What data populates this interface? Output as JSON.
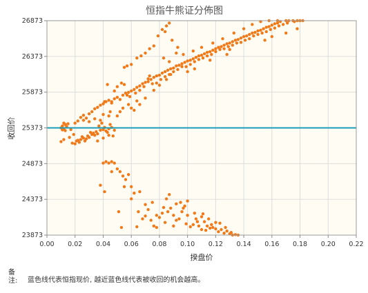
{
  "chart_data": {
    "type": "scatter",
    "title": "恒指牛熊证分佈图",
    "xlabel": "揆盘价",
    "ylabel": "收回价",
    "xlim": [
      0,
      0.22
    ],
    "ylim": [
      23873,
      26873
    ],
    "xticks": [
      "0.00",
      "0.02",
      "0.04",
      "0.06",
      "0.08",
      "0.10",
      "0.12",
      "0.14",
      "0.16",
      "0.18",
      "0.20",
      "0.22"
    ],
    "yticks": [
      "23873",
      "24373",
      "24873",
      "25373",
      "25873",
      "26373",
      "26873"
    ],
    "reference_line": {
      "y": 25373,
      "color": "#1a9bb8"
    },
    "point_color": "#f07a1a",
    "plot_background": "#fffdf3",
    "grid": true,
    "points": [
      [
        0.01,
        25373
      ],
      [
        0.011,
        25400
      ],
      [
        0.012,
        25360
      ],
      [
        0.013,
        25420
      ],
      [
        0.012,
        25440
      ],
      [
        0.014,
        25390
      ],
      [
        0.011,
        25345
      ],
      [
        0.013,
        25335
      ],
      [
        0.015,
        25430
      ],
      [
        0.01,
        25180
      ],
      [
        0.012,
        25210
      ],
      [
        0.016,
        25240
      ],
      [
        0.018,
        25160
      ],
      [
        0.02,
        25150
      ],
      [
        0.021,
        25190
      ],
      [
        0.023,
        25170
      ],
      [
        0.024,
        25210
      ],
      [
        0.026,
        25230
      ],
      [
        0.027,
        25190
      ],
      [
        0.029,
        25260
      ],
      [
        0.03,
        25240
      ],
      [
        0.032,
        25280
      ],
      [
        0.033,
        25300
      ],
      [
        0.035,
        25320
      ],
      [
        0.036,
        25290
      ],
      [
        0.038,
        25340
      ],
      [
        0.04,
        25350
      ],
      [
        0.042,
        25330
      ],
      [
        0.044,
        25360
      ],
      [
        0.046,
        25380
      ],
      [
        0.034,
        25270
      ],
      [
        0.031,
        25310
      ],
      [
        0.028,
        25220
      ],
      [
        0.025,
        25250
      ],
      [
        0.022,
        25200
      ],
      [
        0.019,
        25280
      ],
      [
        0.017,
        25350
      ],
      [
        0.037,
        25400
      ],
      [
        0.041,
        25380
      ],
      [
        0.043,
        25310
      ],
      [
        0.039,
        25440
      ],
      [
        0.045,
        25420
      ],
      [
        0.048,
        25340
      ],
      [
        0.036,
        25190
      ],
      [
        0.04,
        25230
      ],
      [
        0.044,
        25270
      ],
      [
        0.047,
        25260
      ],
      [
        0.02,
        25440
      ],
      [
        0.022,
        25470
      ],
      [
        0.024,
        25520
      ],
      [
        0.026,
        25550
      ],
      [
        0.028,
        25510
      ],
      [
        0.03,
        25570
      ],
      [
        0.032,
        25600
      ],
      [
        0.034,
        25640
      ],
      [
        0.036,
        25660
      ],
      [
        0.038,
        25690
      ],
      [
        0.04,
        25710
      ],
      [
        0.042,
        25740
      ],
      [
        0.044,
        25760
      ],
      [
        0.046,
        25720
      ],
      [
        0.048,
        25780
      ],
      [
        0.05,
        25800
      ],
      [
        0.052,
        25770
      ],
      [
        0.054,
        25830
      ],
      [
        0.056,
        25860
      ],
      [
        0.058,
        25870
      ],
      [
        0.06,
        25890
      ],
      [
        0.062,
        25910
      ],
      [
        0.064,
        25940
      ],
      [
        0.066,
        25960
      ],
      [
        0.068,
        25990
      ],
      [
        0.07,
        26010
      ],
      [
        0.072,
        26020
      ],
      [
        0.074,
        26050
      ],
      [
        0.076,
        26080
      ],
      [
        0.078,
        26100
      ],
      [
        0.08,
        26110
      ],
      [
        0.082,
        26140
      ],
      [
        0.084,
        26160
      ],
      [
        0.086,
        26180
      ],
      [
        0.088,
        26200
      ],
      [
        0.09,
        26210
      ],
      [
        0.092,
        26240
      ],
      [
        0.094,
        26250
      ],
      [
        0.096,
        26270
      ],
      [
        0.098,
        26290
      ],
      [
        0.1,
        26310
      ],
      [
        0.102,
        26320
      ],
      [
        0.104,
        26340
      ],
      [
        0.106,
        26360
      ],
      [
        0.108,
        26380
      ],
      [
        0.11,
        26390
      ],
      [
        0.112,
        26410
      ],
      [
        0.114,
        26430
      ],
      [
        0.116,
        26440
      ],
      [
        0.118,
        26460
      ],
      [
        0.12,
        26480
      ],
      [
        0.122,
        26500
      ],
      [
        0.124,
        26510
      ],
      [
        0.126,
        26530
      ],
      [
        0.128,
        26550
      ],
      [
        0.13,
        26560
      ],
      [
        0.132,
        26580
      ],
      [
        0.134,
        26600
      ],
      [
        0.136,
        26610
      ],
      [
        0.138,
        26630
      ],
      [
        0.14,
        26650
      ],
      [
        0.142,
        26660
      ],
      [
        0.144,
        26680
      ],
      [
        0.146,
        26700
      ],
      [
        0.148,
        26710
      ],
      [
        0.15,
        26730
      ],
      [
        0.152,
        26740
      ],
      [
        0.154,
        26760
      ],
      [
        0.156,
        26780
      ],
      [
        0.158,
        26790
      ],
      [
        0.16,
        26810
      ],
      [
        0.162,
        26830
      ],
      [
        0.164,
        26840
      ],
      [
        0.166,
        26860
      ],
      [
        0.17,
        26873
      ],
      [
        0.175,
        26873
      ],
      [
        0.18,
        26873
      ],
      [
        0.066,
        25900
      ],
      [
        0.072,
        26060
      ],
      [
        0.078,
        26000
      ],
      [
        0.084,
        26090
      ],
      [
        0.09,
        26160
      ],
      [
        0.096,
        26230
      ],
      [
        0.102,
        26260
      ],
      [
        0.108,
        26330
      ],
      [
        0.114,
        26380
      ],
      [
        0.12,
        26440
      ],
      [
        0.126,
        26480
      ],
      [
        0.132,
        26530
      ],
      [
        0.138,
        26570
      ],
      [
        0.144,
        26620
      ],
      [
        0.15,
        26680
      ],
      [
        0.156,
        26720
      ],
      [
        0.162,
        26770
      ],
      [
        0.168,
        26820
      ],
      [
        0.057,
        25830
      ],
      [
        0.063,
        25860
      ],
      [
        0.069,
        25950
      ],
      [
        0.075,
        25990
      ],
      [
        0.081,
        26050
      ],
      [
        0.087,
        26120
      ],
      [
        0.093,
        26190
      ],
      [
        0.099,
        26230
      ],
      [
        0.105,
        26300
      ],
      [
        0.111,
        26350
      ],
      [
        0.117,
        26400
      ],
      [
        0.123,
        26470
      ],
      [
        0.129,
        26510
      ],
      [
        0.135,
        26560
      ],
      [
        0.141,
        26600
      ],
      [
        0.147,
        26660
      ],
      [
        0.153,
        26700
      ],
      [
        0.159,
        26750
      ],
      [
        0.165,
        26800
      ],
      [
        0.171,
        26840
      ],
      [
        0.176,
        26860
      ],
      [
        0.048,
        25890
      ],
      [
        0.05,
        25950
      ],
      [
        0.052,
        25600
      ],
      [
        0.054,
        25650
      ],
      [
        0.058,
        25700
      ],
      [
        0.062,
        25620
      ],
      [
        0.066,
        25700
      ],
      [
        0.07,
        25790
      ],
      [
        0.043,
        25980
      ],
      [
        0.041,
        25740
      ],
      [
        0.045,
        25600
      ],
      [
        0.053,
        26000
      ],
      [
        0.055,
        25980
      ],
      [
        0.059,
        25810
      ],
      [
        0.064,
        25750
      ],
      [
        0.06,
        25650
      ],
      [
        0.046,
        25740
      ],
      [
        0.05,
        25540
      ],
      [
        0.044,
        25540
      ],
      [
        0.04,
        25560
      ],
      [
        0.038,
        25480
      ],
      [
        0.034,
        25500
      ],
      [
        0.03,
        25460
      ],
      [
        0.026,
        25480
      ],
      [
        0.055,
        26220
      ],
      [
        0.057,
        26240
      ],
      [
        0.06,
        26260
      ],
      [
        0.064,
        26350
      ],
      [
        0.067,
        26380
      ],
      [
        0.07,
        26420
      ],
      [
        0.073,
        26480
      ],
      [
        0.076,
        26520
      ],
      [
        0.079,
        26660
      ],
      [
        0.082,
        26750
      ],
      [
        0.085,
        26800
      ],
      [
        0.087,
        26840
      ],
      [
        0.084,
        26720
      ],
      [
        0.089,
        26600
      ],
      [
        0.093,
        26500
      ],
      [
        0.097,
        26400
      ],
      [
        0.088,
        26120
      ],
      [
        0.085,
        26050
      ],
      [
        0.08,
        25970
      ],
      [
        0.076,
        25900
      ],
      [
        0.073,
        26100
      ],
      [
        0.1,
        26160
      ],
      [
        0.105,
        26200
      ],
      [
        0.083,
        26350
      ],
      [
        0.087,
        26300
      ],
      [
        0.092,
        26420
      ],
      [
        0.104,
        26450
      ],
      [
        0.11,
        26500
      ],
      [
        0.118,
        26560
      ],
      [
        0.125,
        26620
      ],
      [
        0.133,
        26700
      ],
      [
        0.14,
        26760
      ],
      [
        0.146,
        26820
      ],
      [
        0.152,
        26860
      ],
      [
        0.158,
        26873
      ],
      [
        0.164,
        26873
      ],
      [
        0.172,
        26873
      ],
      [
        0.178,
        26873
      ],
      [
        0.155,
        26600
      ],
      [
        0.16,
        26650
      ],
      [
        0.17,
        26700
      ],
      [
        0.178,
        26760
      ],
      [
        0.182,
        26873
      ],
      [
        0.13,
        26470
      ],
      [
        0.128,
        26400
      ],
      [
        0.116,
        26320
      ],
      [
        0.04,
        24880
      ],
      [
        0.042,
        24900
      ],
      [
        0.044,
        24880
      ],
      [
        0.046,
        24900
      ],
      [
        0.048,
        24880
      ],
      [
        0.038,
        24570
      ],
      [
        0.041,
        24480
      ],
      [
        0.052,
        24760
      ],
      [
        0.054,
        24700
      ],
      [
        0.056,
        24650
      ],
      [
        0.058,
        24720
      ],
      [
        0.06,
        24550
      ],
      [
        0.062,
        24460
      ],
      [
        0.065,
        24200
      ],
      [
        0.068,
        24100
      ],
      [
        0.07,
        24300
      ],
      [
        0.072,
        24230
      ],
      [
        0.074,
        24080
      ],
      [
        0.076,
        24000
      ],
      [
        0.078,
        23980
      ],
      [
        0.08,
        24120
      ],
      [
        0.082,
        24180
      ],
      [
        0.084,
        24050
      ],
      [
        0.086,
        24200
      ],
      [
        0.088,
        24250
      ],
      [
        0.09,
        24150
      ],
      [
        0.092,
        24080
      ],
      [
        0.094,
        24100
      ],
      [
        0.096,
        24200
      ],
      [
        0.098,
        24280
      ],
      [
        0.1,
        24150
      ],
      [
        0.102,
        23990
      ],
      [
        0.104,
        24020
      ],
      [
        0.106,
        24100
      ],
      [
        0.108,
        24000
      ],
      [
        0.11,
        23950
      ],
      [
        0.112,
        24060
      ],
      [
        0.114,
        24000
      ],
      [
        0.116,
        23970
      ],
      [
        0.118,
        23980
      ],
      [
        0.12,
        23960
      ],
      [
        0.122,
        23920
      ],
      [
        0.124,
        23950
      ],
      [
        0.126,
        23900
      ],
      [
        0.128,
        23930
      ],
      [
        0.13,
        23890
      ],
      [
        0.132,
        23873
      ],
      [
        0.134,
        23880
      ],
      [
        0.136,
        23873
      ],
      [
        0.085,
        24380
      ],
      [
        0.087,
        24440
      ],
      [
        0.092,
        24310
      ],
      [
        0.095,
        24330
      ],
      [
        0.097,
        24250
      ],
      [
        0.105,
        24180
      ],
      [
        0.11,
        24130
      ],
      [
        0.115,
        24100
      ],
      [
        0.12,
        24050
      ],
      [
        0.1,
        24350
      ],
      [
        0.09,
        24000
      ],
      [
        0.083,
        24260
      ],
      [
        0.078,
        24150
      ],
      [
        0.075,
        24330
      ],
      [
        0.07,
        24140
      ],
      [
        0.066,
        24480
      ],
      [
        0.05,
        24800
      ],
      [
        0.046,
        24760
      ],
      [
        0.055,
        24550
      ],
      [
        0.064,
        23990
      ],
      [
        0.06,
        24380
      ],
      [
        0.053,
        23980
      ],
      [
        0.051,
        24200
      ],
      [
        0.107,
        24060
      ],
      [
        0.111,
        24170
      ],
      [
        0.117,
        24020
      ],
      [
        0.123,
        24040
      ],
      [
        0.127,
        23980
      ],
      [
        0.131,
        23910
      ],
      [
        0.113,
        23940
      ],
      [
        0.099,
        24030
      ]
    ]
  },
  "note": {
    "key": "备\n注:",
    "text": "蓝色线代表恒指现价, 越近蓝色线代表被收回的机会越高。"
  }
}
